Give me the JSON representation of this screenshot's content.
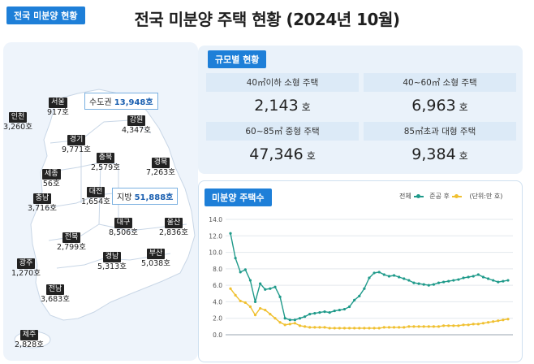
{
  "title": "전국 미분양 주택 현황 (2024년 10월)",
  "map_section": {
    "tag": "전국 미분양 현황",
    "callouts": [
      {
        "label": "수도권",
        "value": "13,948호"
      },
      {
        "label": "지방",
        "value": "51,888호"
      }
    ],
    "regions": [
      {
        "name": "서울",
        "value": "917호"
      },
      {
        "name": "인천",
        "value": "3,260호"
      },
      {
        "name": "경기",
        "value": "9,771호"
      },
      {
        "name": "강원",
        "value": "4,347호"
      },
      {
        "name": "충북",
        "value": "2,579호"
      },
      {
        "name": "세종",
        "value": "56호"
      },
      {
        "name": "경북",
        "value": "7,263호"
      },
      {
        "name": "충남",
        "value": "3,716호"
      },
      {
        "name": "대전",
        "value": "1,654호"
      },
      {
        "name": "대구",
        "value": "8,506호"
      },
      {
        "name": "울산",
        "value": "2,836호"
      },
      {
        "name": "전북",
        "value": "2,799호"
      },
      {
        "name": "경남",
        "value": "5,313호"
      },
      {
        "name": "부산",
        "value": "5,038호"
      },
      {
        "name": "광주",
        "value": "1,270호"
      },
      {
        "name": "전남",
        "value": "3,683호"
      },
      {
        "name": "제주",
        "value": "2,828호"
      }
    ]
  },
  "size_section": {
    "tag": "규모별 현황",
    "items": [
      {
        "label": "40㎡이하 소형 주택",
        "value": "2,143",
        "unit": "호"
      },
      {
        "label": "40~60㎡ 소형 주택",
        "value": "6,963",
        "unit": "호"
      },
      {
        "label": "60~85㎡ 중형 주택",
        "value": "47,346",
        "unit": "호"
      },
      {
        "label": "85㎡초과 대형 주택",
        "value": "9,384",
        "unit": "호"
      }
    ]
  },
  "chart_section": {
    "tag": "미분양 주택수",
    "legend_total": "전체",
    "legend_completed": "준공 후",
    "unit_note": "(단위:만 호)"
  },
  "colors": {
    "accent": "#1e7fd8",
    "total_line": "#1f9a8a",
    "completed_line": "#f0c030",
    "map_fill": "#ffffff"
  },
  "chart_data": {
    "type": "line",
    "title": "미분양 주택수",
    "ylabel": "(단위:만 호)",
    "ylim": [
      0,
      14
    ],
    "yticks": [
      0.0,
      2.0,
      4.0,
      6.0,
      8.0,
      10.0,
      12.0,
      14.0
    ],
    "grid": true,
    "legend": "top-right",
    "series": [
      {
        "name": "전체",
        "values": [
          12.3,
          9.3,
          7.6,
          7.9,
          6.6,
          4.0,
          6.2,
          5.5,
          5.6,
          5.8,
          4.6,
          2.0,
          1.8,
          1.8,
          2.0,
          2.2,
          2.5,
          2.6,
          2.7,
          2.8,
          2.7,
          2.9,
          3.0,
          3.1,
          3.4,
          4.2,
          4.7,
          5.6,
          6.9,
          7.5,
          7.6,
          7.3,
          7.1,
          7.2,
          7.0,
          6.8,
          6.6,
          6.3,
          6.2,
          6.1,
          6.0,
          6.1,
          6.3,
          6.4,
          6.5,
          6.6,
          6.7,
          6.9,
          7.0,
          7.1,
          7.3,
          7.0,
          6.8,
          6.6,
          6.4,
          6.5,
          6.6
        ]
      },
      {
        "name": "준공 후",
        "values": [
          5.6,
          4.8,
          4.1,
          3.9,
          3.4,
          2.4,
          3.2,
          3.0,
          2.5,
          2.0,
          1.5,
          1.2,
          1.3,
          1.4,
          1.1,
          1.0,
          0.9,
          0.9,
          0.9,
          0.9,
          0.8,
          0.8,
          0.8,
          0.8,
          0.8,
          0.8,
          0.8,
          0.8,
          0.8,
          0.8,
          0.8,
          0.9,
          0.9,
          0.9,
          0.9,
          0.9,
          1.0,
          1.0,
          1.0,
          1.0,
          1.0,
          1.0,
          1.0,
          1.1,
          1.1,
          1.1,
          1.1,
          1.2,
          1.2,
          1.3,
          1.3,
          1.4,
          1.5,
          1.6,
          1.7,
          1.8,
          1.9
        ]
      }
    ]
  }
}
